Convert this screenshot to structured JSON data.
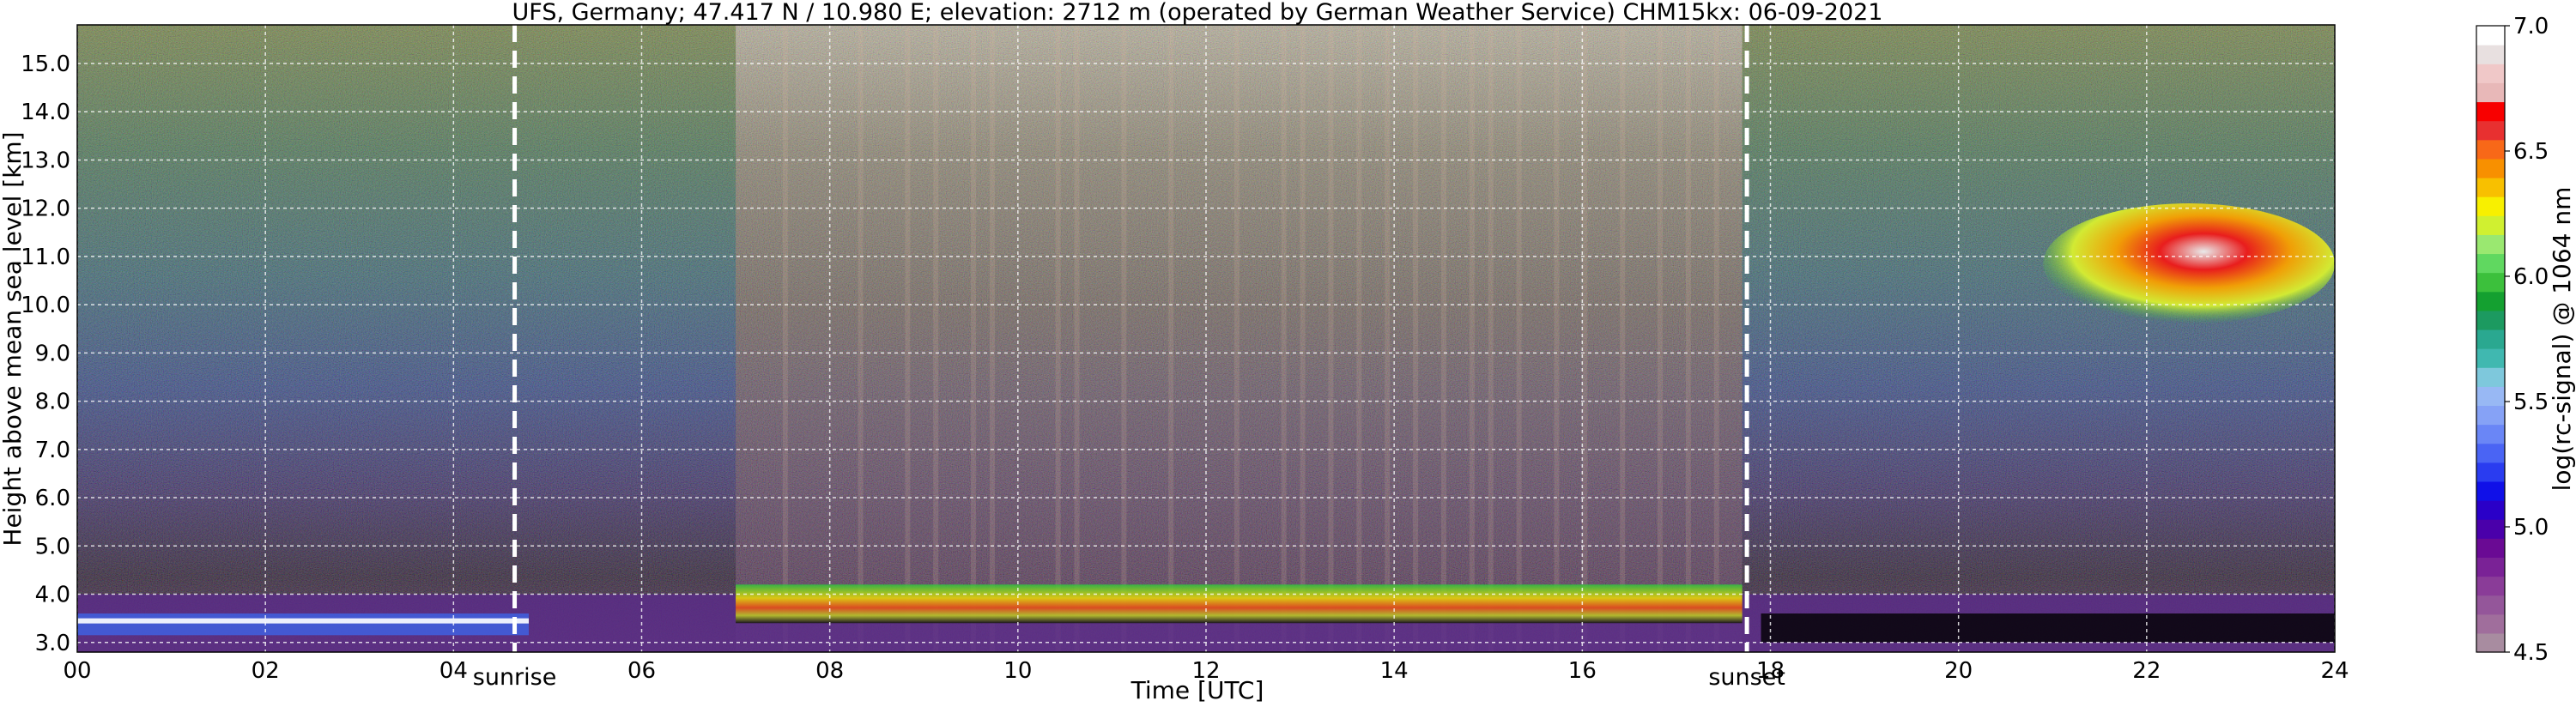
{
  "chart_data": {
    "type": "heatmap",
    "title": "UFS, Germany; 47.417 N / 10.980 E; elevation: 2712 m  (operated by German Weather Service)    CHM15kx: 06-09-2021",
    "xlabel": "Time [UTC]",
    "ylabel": "Height above mean sea level [km]",
    "xlim": [
      0,
      24
    ],
    "ylim": [
      2.8,
      15.8
    ],
    "x_ticks": [
      {
        "value": 0,
        "label": "00"
      },
      {
        "value": 2,
        "label": "02"
      },
      {
        "value": 4,
        "label": "04"
      },
      {
        "value": 6,
        "label": "06"
      },
      {
        "value": 8,
        "label": "08"
      },
      {
        "value": 10,
        "label": "10"
      },
      {
        "value": 12,
        "label": "12"
      },
      {
        "value": 14,
        "label": "14"
      },
      {
        "value": 16,
        "label": "16"
      },
      {
        "value": 18,
        "label": "18"
      },
      {
        "value": 20,
        "label": "20"
      },
      {
        "value": 22,
        "label": "22"
      },
      {
        "value": 24,
        "label": "24"
      }
    ],
    "y_ticks": [
      {
        "value": 3.0,
        "label": "3.0"
      },
      {
        "value": 4.0,
        "label": "4.0"
      },
      {
        "value": 5.0,
        "label": "5.0"
      },
      {
        "value": 6.0,
        "label": "6.0"
      },
      {
        "value": 7.0,
        "label": "7.0"
      },
      {
        "value": 8.0,
        "label": "8.0"
      },
      {
        "value": 9.0,
        "label": "9.0"
      },
      {
        "value": 10.0,
        "label": "10.0"
      },
      {
        "value": 11.0,
        "label": "11.0"
      },
      {
        "value": 12.0,
        "label": "12.0"
      },
      {
        "value": 13.0,
        "label": "13.0"
      },
      {
        "value": 14.0,
        "label": "14.0"
      },
      {
        "value": 15.0,
        "label": "15.0"
      }
    ],
    "grid": true,
    "markers": [
      {
        "label": "sunrise",
        "x": 4.65
      },
      {
        "label": "sunset",
        "x": 17.75
      }
    ],
    "colorbar": {
      "label": "log(rc-signal) @ 1064 nm",
      "range": [
        4.5,
        7.0
      ],
      "ticks": [
        {
          "value": 4.5,
          "label": "4.5"
        },
        {
          "value": 5.0,
          "label": "5.0"
        },
        {
          "value": 5.5,
          "label": "5.5"
        },
        {
          "value": 6.0,
          "label": "6.0"
        },
        {
          "value": 6.5,
          "label": "6.5"
        },
        {
          "value": 7.0,
          "label": "7.0"
        }
      ],
      "colors": [
        "#a88ca0",
        "#a06e9c",
        "#94569a",
        "#8a3c98",
        "#7a2296",
        "#6a0a94",
        "#4a00aa",
        "#2a00c8",
        "#1010e8",
        "#2a3cf0",
        "#4a64f4",
        "#6a86f6",
        "#86a2f6",
        "#98b8f4",
        "#7ec8dc",
        "#40b8b0",
        "#2aa890",
        "#1c9a60",
        "#14a030",
        "#3cc03c",
        "#60d860",
        "#9ae870",
        "#d0f030",
        "#f8f000",
        "#f8c000",
        "#f89000",
        "#f86818",
        "#e83030",
        "#f80000",
        "#e8b8b8",
        "#f0c8c8",
        "#e8e0e0",
        "#ffffff"
      ]
    },
    "regions": [
      {
        "description_value": "lower-layer signal",
        "x": [
          0,
          24
        ],
        "y": [
          2.8,
          4.0
        ],
        "level": 5.0
      },
      {
        "description_value": "boundary-layer aerosol",
        "x": [
          7.0,
          17.7
        ],
        "y": [
          3.4,
          4.2
        ],
        "level": 6.3
      },
      {
        "description_value": "high cloud",
        "x": [
          20.9,
          24
        ],
        "y": [
          9.6,
          12.1
        ],
        "level": 6.4
      }
    ]
  }
}
